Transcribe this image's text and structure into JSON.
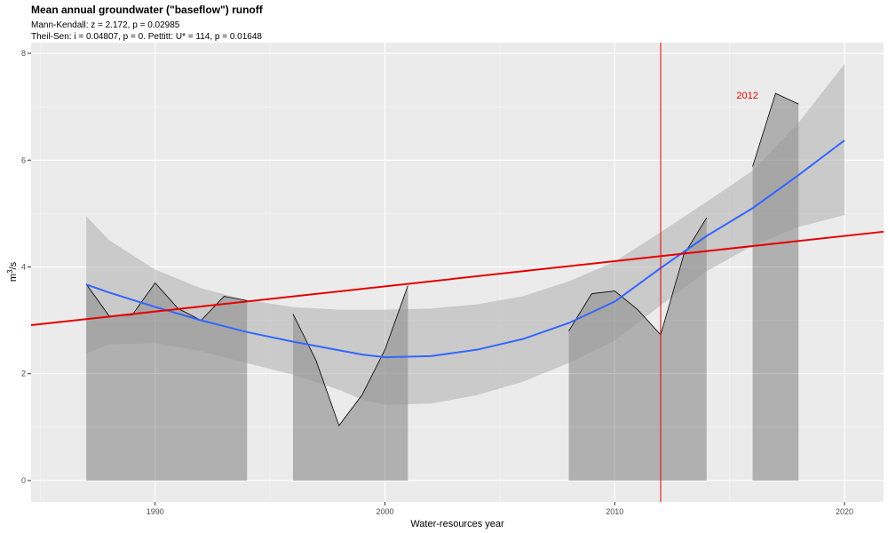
{
  "chart_data": {
    "type": "area",
    "title": "Mean annual groundwater (\"baseflow\") runoff",
    "subtitle_line1": "Mann-Kendall: z = 2.172, p = 0.02985",
    "subtitle_line2": "Theil-Sen: i = 0.04807, p = 0. Pettitt: U* = 114, p = 0.01648",
    "xlabel": "Water-resources year",
    "ylabel_base": "m",
    "ylabel_sup": "3",
    "ylabel_tail": "/s",
    "xlim": [
      1984.6,
      2021.7
    ],
    "ylim": [
      -0.4,
      8.2
    ],
    "x_ticks": [
      1990,
      2000,
      2010,
      2020
    ],
    "y_ticks": [
      0,
      2,
      4,
      6,
      8
    ],
    "grid": true,
    "series": [
      {
        "x": [
          1987,
          1988,
          1989,
          1990,
          1991,
          1992,
          1993,
          1994
        ],
        "y": [
          3.68,
          3.08,
          3.1,
          3.7,
          3.22,
          3.0,
          3.45,
          3.37
        ]
      },
      {
        "x": [
          1996,
          1997,
          1998,
          1999,
          2000,
          2001
        ],
        "y": [
          3.12,
          2.25,
          1.03,
          1.6,
          2.45,
          3.65
        ]
      },
      {
        "x": [
          2008,
          2009,
          2010,
          2011,
          2012,
          2013,
          2014
        ],
        "y": [
          2.8,
          3.5,
          3.55,
          3.2,
          2.73,
          4.22,
          4.92
        ]
      },
      {
        "x": [
          2016,
          2017,
          2018
        ],
        "y": [
          5.88,
          7.25,
          7.05
        ]
      }
    ],
    "loess": {
      "color": "#3366FF",
      "x": [
        1987,
        1988,
        1990,
        1992,
        1994,
        1996,
        1998,
        1999,
        2000,
        2002,
        2004,
        2006,
        2008,
        2010,
        2012,
        2014,
        2016,
        2018,
        2020
      ],
      "y": [
        3.67,
        3.52,
        3.25,
        3.0,
        2.78,
        2.6,
        2.44,
        2.36,
        2.31,
        2.33,
        2.45,
        2.65,
        2.95,
        3.35,
        3.98,
        4.58,
        5.1,
        5.72,
        6.37
      ],
      "lower": [
        2.38,
        2.55,
        2.57,
        2.42,
        2.2,
        1.98,
        1.7,
        1.52,
        1.42,
        1.44,
        1.6,
        1.85,
        2.2,
        2.62,
        3.28,
        3.92,
        4.4,
        4.75,
        4.97
      ],
      "upper": [
        4.95,
        4.5,
        3.95,
        3.6,
        3.38,
        3.25,
        3.2,
        3.2,
        3.2,
        3.22,
        3.3,
        3.45,
        3.73,
        4.1,
        4.65,
        5.22,
        5.8,
        6.7,
        7.8
      ]
    },
    "trend_line": {
      "color": "#e60000",
      "x": [
        1984.6,
        2021.7
      ],
      "y": [
        2.91,
        4.66
      ]
    },
    "changepoint": {
      "x": 2012,
      "label": "2012",
      "color": "#e60000",
      "label_x": 2015.3,
      "label_y": 7.22
    }
  }
}
